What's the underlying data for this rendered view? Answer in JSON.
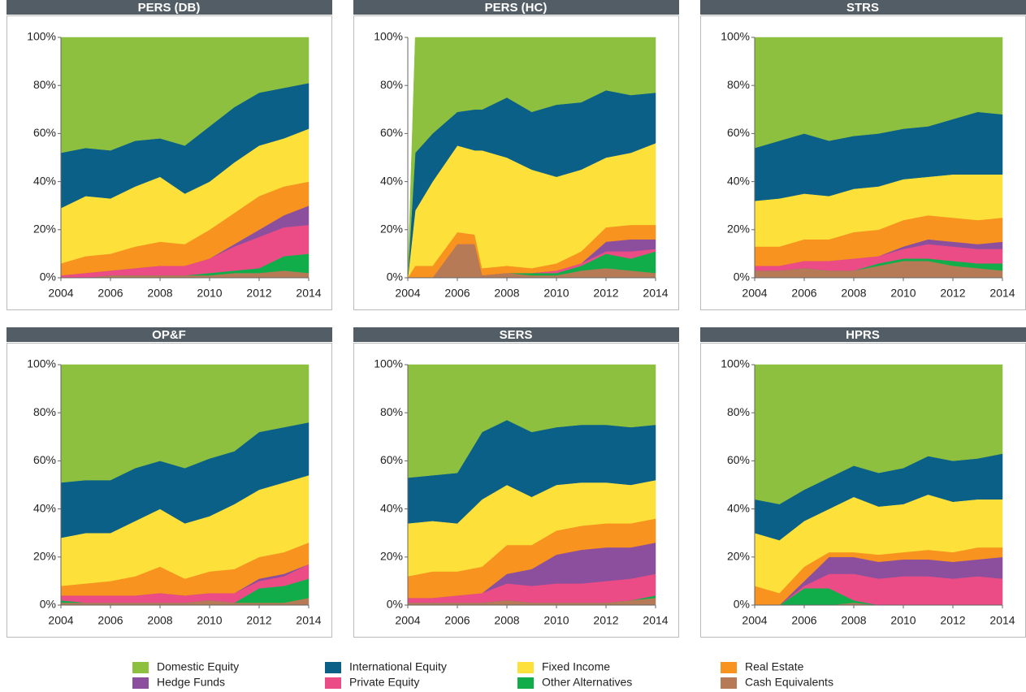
{
  "chart_data": [
    {
      "type": "area",
      "title": "PERS (DB)",
      "x": [
        2004,
        2005,
        2006,
        2007,
        2008,
        2009,
        2010,
        2011,
        2012,
        2013,
        2014
      ],
      "xlim": [
        2004,
        2014
      ],
      "xticks": [
        2004,
        2006,
        2008,
        2010,
        2012,
        2014
      ],
      "ylim": [
        0,
        100
      ],
      "yticks": [
        {
          "value": 0,
          "label": "0%"
        },
        {
          "value": 20,
          "label": "20%"
        },
        {
          "value": 40,
          "label": "40%"
        },
        {
          "value": 60,
          "label": "60%"
        },
        {
          "value": 80,
          "label": "80%"
        },
        {
          "value": 100,
          "label": "100%"
        }
      ],
      "series": [
        {
          "name": "Domestic Equity",
          "color": "#8dc03f",
          "values": [
            48,
            46,
            47,
            43,
            42,
            45,
            37,
            29,
            23,
            21,
            19
          ]
        },
        {
          "name": "International Equity",
          "color": "#0b6087",
          "values": [
            23,
            20,
            20,
            19,
            16,
            20,
            23,
            23,
            22,
            21,
            19
          ]
        },
        {
          "name": "Fixed Income",
          "color": "#fde13a",
          "values": [
            23,
            25,
            23,
            25,
            27,
            21,
            20,
            21,
            21,
            20,
            22
          ]
        },
        {
          "name": "Real Estate",
          "color": "#f7931e",
          "values": [
            5,
            7,
            7,
            9,
            10,
            9,
            12,
            13,
            14,
            12,
            10
          ]
        },
        {
          "name": "Hedge Funds",
          "color": "#8c4f9d",
          "values": [
            0,
            0,
            0,
            0,
            0,
            0,
            0,
            1,
            3,
            5,
            8
          ]
        },
        {
          "name": "Private Equity",
          "color": "#ec4c85",
          "values": [
            1,
            2,
            2,
            3,
            4,
            4,
            6,
            10,
            13,
            12,
            12
          ]
        },
        {
          "name": "Other Alternatives",
          "color": "#12ad4b",
          "values": [
            0,
            0,
            0,
            0,
            0,
            0,
            1,
            1,
            2,
            6,
            8
          ]
        },
        {
          "name": "Cash Equivalents",
          "color": "#b77a56",
          "values": [
            0,
            0,
            1,
            1,
            1,
            1,
            1,
            2,
            2,
            3,
            2
          ]
        }
      ]
    },
    {
      "type": "area",
      "title": "PERS (HC)",
      "x": [
        2004,
        2004.3,
        2005,
        2006,
        2006.7,
        2007,
        2008,
        2009,
        2010,
        2011,
        2012,
        2013,
        2014
      ],
      "xlim": [
        2004,
        2014
      ],
      "xticks": [
        2004,
        2006,
        2008,
        2010,
        2012,
        2014
      ],
      "ylim": [
        0,
        100
      ],
      "yticks": [
        {
          "value": 0,
          "label": "0%"
        },
        {
          "value": 20,
          "label": "20%"
        },
        {
          "value": 40,
          "label": "40%"
        },
        {
          "value": 60,
          "label": "60%"
        },
        {
          "value": 80,
          "label": "80%"
        },
        {
          "value": 100,
          "label": "100%"
        }
      ],
      "series": [
        {
          "name": "Domestic Equity",
          "color": "#8dc03f",
          "values": [
            0,
            48,
            40,
            31,
            30,
            30,
            25,
            31,
            28,
            27,
            22,
            24,
            23
          ]
        },
        {
          "name": "International Equity",
          "color": "#0b6087",
          "values": [
            0,
            24,
            20,
            14,
            17,
            17,
            25,
            24,
            30,
            28,
            28,
            24,
            21
          ]
        },
        {
          "name": "Fixed Income",
          "color": "#fde13a",
          "values": [
            0,
            23,
            35,
            36,
            35,
            49,
            45,
            41,
            36,
            34,
            29,
            30,
            34
          ]
        },
        {
          "name": "Real Estate",
          "color": "#f7931e",
          "values": [
            0,
            5,
            5,
            5,
            4,
            3,
            3,
            2,
            3,
            5,
            6,
            6,
            6
          ]
        },
        {
          "name": "Hedge Funds",
          "color": "#8c4f9d",
          "values": [
            0,
            0,
            0,
            0,
            0,
            0,
            0,
            0,
            0,
            0,
            4,
            5,
            4
          ]
        },
        {
          "name": "Private Equity",
          "color": "#ec4c85",
          "values": [
            0,
            0,
            0,
            0,
            0,
            0,
            0,
            0,
            1,
            1,
            1,
            3,
            1
          ]
        },
        {
          "name": "Other Alternatives",
          "color": "#12ad4b",
          "values": [
            0,
            0,
            0,
            0,
            0,
            0,
            0,
            1,
            1,
            2,
            6,
            5,
            9
          ]
        },
        {
          "name": "Cash Equivalents",
          "color": "#b77a56",
          "values": [
            0,
            0,
            0,
            14,
            14,
            1,
            2,
            1,
            1,
            3,
            4,
            3,
            2
          ]
        }
      ]
    },
    {
      "type": "area",
      "title": "STRS",
      "x": [
        2004,
        2005,
        2006,
        2007,
        2008,
        2009,
        2010,
        2011,
        2012,
        2013,
        2014
      ],
      "xlim": [
        2004,
        2014
      ],
      "xticks": [
        2004,
        2006,
        2008,
        2010,
        2012,
        2014
      ],
      "ylim": [
        0,
        100
      ],
      "yticks": [
        {
          "value": 0,
          "label": "0%"
        },
        {
          "value": 20,
          "label": "20%"
        },
        {
          "value": 40,
          "label": "40%"
        },
        {
          "value": 60,
          "label": "60%"
        },
        {
          "value": 80,
          "label": "80%"
        },
        {
          "value": 100,
          "label": "100%"
        }
      ],
      "series": [
        {
          "name": "Domestic Equity",
          "color": "#8dc03f",
          "values": [
            46,
            43,
            40,
            43,
            41,
            40,
            38,
            37,
            34,
            31,
            32
          ]
        },
        {
          "name": "International Equity",
          "color": "#0b6087",
          "values": [
            22,
            24,
            25,
            23,
            22,
            22,
            21,
            21,
            23,
            26,
            25
          ]
        },
        {
          "name": "Fixed Income",
          "color": "#fde13a",
          "values": [
            19,
            20,
            19,
            18,
            18,
            18,
            17,
            16,
            18,
            19,
            18
          ]
        },
        {
          "name": "Real Estate",
          "color": "#f7931e",
          "values": [
            8,
            8,
            9,
            9,
            11,
            11,
            11,
            10,
            10,
            10,
            10
          ]
        },
        {
          "name": "Hedge Funds",
          "color": "#8c4f9d",
          "values": [
            0,
            0,
            0,
            0,
            0,
            0,
            1,
            2,
            2,
            2,
            3
          ]
        },
        {
          "name": "Private Equity",
          "color": "#ec4c85",
          "values": [
            2,
            2,
            3,
            4,
            5,
            3,
            4,
            6,
            6,
            6,
            6
          ]
        },
        {
          "name": "Other Alternatives",
          "color": "#12ad4b",
          "values": [
            0,
            0,
            0,
            0,
            0,
            1,
            1,
            1,
            2,
            2,
            3
          ]
        },
        {
          "name": "Cash Equivalents",
          "color": "#b77a56",
          "values": [
            3,
            3,
            4,
            3,
            3,
            5,
            7,
            7,
            5,
            4,
            3
          ]
        }
      ]
    },
    {
      "type": "area",
      "title": "OP&F",
      "x": [
        2004,
        2005,
        2006,
        2007,
        2008,
        2009,
        2010,
        2011,
        2012,
        2013,
        2014
      ],
      "xlim": [
        2004,
        2014
      ],
      "xticks": [
        2004,
        2006,
        2008,
        2010,
        2012,
        2014
      ],
      "ylim": [
        0,
        100
      ],
      "yticks": [
        {
          "value": 0,
          "label": "0%"
        },
        {
          "value": 20,
          "label": "20%"
        },
        {
          "value": 40,
          "label": "40%"
        },
        {
          "value": 60,
          "label": "60%"
        },
        {
          "value": 80,
          "label": "80%"
        },
        {
          "value": 100,
          "label": "100%"
        }
      ],
      "series": [
        {
          "name": "Domestic Equity",
          "color": "#8dc03f",
          "values": [
            49,
            48,
            48,
            43,
            40,
            43,
            39,
            36,
            28,
            26,
            24
          ]
        },
        {
          "name": "International Equity",
          "color": "#0b6087",
          "values": [
            23,
            22,
            22,
            22,
            20,
            23,
            24,
            22,
            24,
            23,
            22
          ]
        },
        {
          "name": "Fixed Income",
          "color": "#fde13a",
          "values": [
            20,
            21,
            20,
            23,
            24,
            23,
            23,
            27,
            28,
            29,
            28
          ]
        },
        {
          "name": "Real Estate",
          "color": "#f7931e",
          "values": [
            4,
            5,
            6,
            8,
            11,
            7,
            9,
            10,
            9,
            9,
            9
          ]
        },
        {
          "name": "Hedge Funds",
          "color": "#8c4f9d",
          "values": [
            0,
            0,
            0,
            0,
            0,
            0,
            0,
            0,
            1,
            1,
            0
          ]
        },
        {
          "name": "Private Equity",
          "color": "#ec4c85",
          "values": [
            2,
            3,
            3,
            3,
            4,
            3,
            3,
            4,
            3,
            4,
            6
          ]
        },
        {
          "name": "Other Alternatives",
          "color": "#12ad4b",
          "values": [
            1,
            0,
            0,
            0,
            0,
            0,
            0,
            0,
            6,
            7,
            8
          ]
        },
        {
          "name": "Cash Equivalents",
          "color": "#b77a56",
          "values": [
            1,
            1,
            1,
            1,
            1,
            1,
            2,
            1,
            1,
            1,
            3
          ]
        }
      ]
    },
    {
      "type": "area",
      "title": "SERS",
      "x": [
        2004,
        2005,
        2006,
        2007,
        2008,
        2009,
        2010,
        2011,
        2012,
        2013,
        2014
      ],
      "xlim": [
        2004,
        2014
      ],
      "xticks": [
        2004,
        2006,
        2008,
        2010,
        2012,
        2014
      ],
      "ylim": [
        0,
        100
      ],
      "yticks": [
        {
          "value": 0,
          "label": "0%"
        },
        {
          "value": 20,
          "label": "20%"
        },
        {
          "value": 40,
          "label": "40%"
        },
        {
          "value": 60,
          "label": "60%"
        },
        {
          "value": 80,
          "label": "80%"
        },
        {
          "value": 100,
          "label": "100%"
        }
      ],
      "series": [
        {
          "name": "Domestic Equity",
          "color": "#8dc03f",
          "values": [
            47,
            46,
            45,
            28,
            23,
            28,
            26,
            25,
            25,
            26,
            25
          ]
        },
        {
          "name": "International Equity",
          "color": "#0b6087",
          "values": [
            19,
            19,
            21,
            28,
            27,
            27,
            24,
            24,
            24,
            24,
            23
          ]
        },
        {
          "name": "Fixed Income",
          "color": "#fde13a",
          "values": [
            22,
            21,
            20,
            28,
            25,
            20,
            19,
            18,
            17,
            16,
            16
          ]
        },
        {
          "name": "Real Estate",
          "color": "#f7931e",
          "values": [
            9,
            11,
            10,
            11,
            12,
            10,
            10,
            10,
            10,
            10,
            10
          ]
        },
        {
          "name": "Hedge Funds",
          "color": "#8c4f9d",
          "values": [
            0,
            0,
            0,
            0,
            4,
            7,
            12,
            14,
            14,
            13,
            13
          ]
        },
        {
          "name": "Private Equity",
          "color": "#ec4c85",
          "values": [
            2,
            2,
            3,
            4,
            7,
            7,
            8,
            8,
            9,
            9,
            9
          ]
        },
        {
          "name": "Other Alternatives",
          "color": "#12ad4b",
          "values": [
            0,
            0,
            0,
            0,
            0,
            0,
            0,
            0,
            0,
            0,
            1
          ]
        },
        {
          "name": "Cash Equivalents",
          "color": "#b77a56",
          "values": [
            1,
            1,
            1,
            1,
            2,
            1,
            1,
            1,
            1,
            2,
            3
          ]
        }
      ]
    },
    {
      "type": "area",
      "title": "HPRS",
      "x": [
        2004,
        2005,
        2006,
        2007,
        2008,
        2009,
        2010,
        2011,
        2012,
        2013,
        2014
      ],
      "xlim": [
        2004,
        2014
      ],
      "xticks": [
        2004,
        2006,
        2008,
        2010,
        2012,
        2014
      ],
      "ylim": [
        0,
        100
      ],
      "yticks": [
        {
          "value": 0,
          "label": "0%"
        },
        {
          "value": 20,
          "label": "20%"
        },
        {
          "value": 40,
          "label": "40%"
        },
        {
          "value": 60,
          "label": "60%"
        },
        {
          "value": 80,
          "label": "80%"
        },
        {
          "value": 100,
          "label": "100%"
        }
      ],
      "series": [
        {
          "name": "Domestic Equity",
          "color": "#8dc03f",
          "values": [
            56,
            58,
            52,
            47,
            42,
            45,
            43,
            38,
            40,
            39,
            37
          ]
        },
        {
          "name": "International Equity",
          "color": "#0b6087",
          "values": [
            14,
            15,
            13,
            13,
            13,
            14,
            15,
            16,
            17,
            17,
            19
          ]
        },
        {
          "name": "Fixed Income",
          "color": "#fde13a",
          "values": [
            22,
            22,
            19,
            18,
            23,
            20,
            20,
            23,
            21,
            20,
            20
          ]
        },
        {
          "name": "Real Estate",
          "color": "#f7931e",
          "values": [
            8,
            5,
            6,
            2,
            2,
            3,
            3,
            4,
            4,
            5,
            4
          ]
        },
        {
          "name": "Hedge Funds",
          "color": "#8c4f9d",
          "values": [
            0,
            0,
            2,
            7,
            7,
            7,
            7,
            7,
            7,
            7,
            9
          ]
        },
        {
          "name": "Private Equity",
          "color": "#ec4c85",
          "values": [
            0,
            0,
            1,
            6,
            11,
            11,
            12,
            12,
            11,
            12,
            11
          ]
        },
        {
          "name": "Other Alternatives",
          "color": "#12ad4b",
          "values": [
            0,
            0,
            7,
            7,
            1,
            0,
            0,
            0,
            0,
            0,
            0
          ]
        },
        {
          "name": "Cash Equivalents",
          "color": "#b77a56",
          "values": [
            0,
            0,
            0,
            0,
            1,
            0,
            0,
            0,
            0,
            0,
            0
          ]
        }
      ]
    }
  ]
}
